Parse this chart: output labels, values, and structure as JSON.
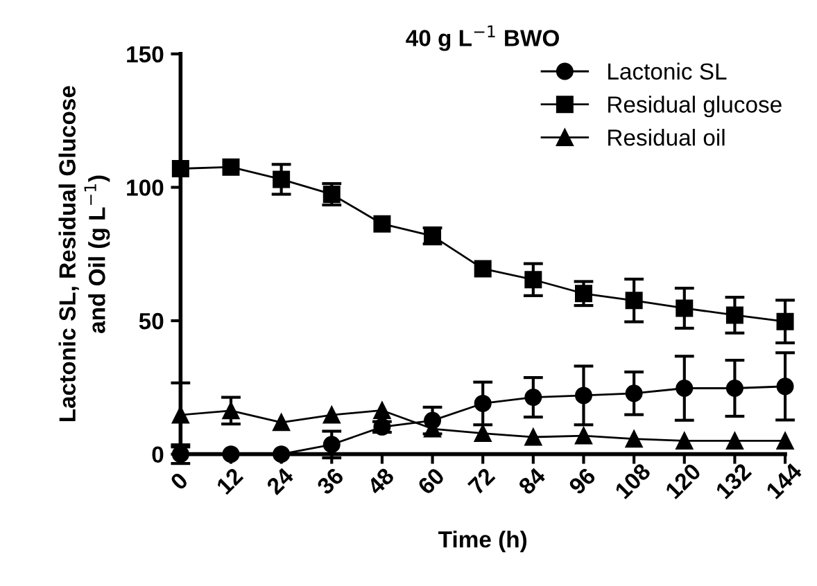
{
  "chart_data": {
    "type": "line",
    "title": "40 g L$^{−1}$ BWO",
    "xlabel": "Time (h)",
    "ylabel": "Lactonic SL, Residual Glucose\nand Oil (g L$^{−1}$)",
    "x": [
      0,
      12,
      24,
      36,
      48,
      60,
      72,
      84,
      96,
      108,
      120,
      132,
      144
    ],
    "series": [
      {
        "name": "Lactonic SL",
        "color": "#000000",
        "marker": "circle",
        "values": [
          0,
          0,
          0,
          3.6,
          10.2,
          12.6,
          19,
          21.3,
          22,
          22.8,
          24.7,
          24.7,
          25.4
        ],
        "errors": [
          3.5,
          null,
          null,
          5,
          2,
          5,
          8,
          7.4,
          11,
          8,
          12,
          10.5,
          12.6
        ]
      },
      {
        "name": "Residual glucose",
        "color": "#000000",
        "marker": "square",
        "values": [
          107,
          107.6,
          103,
          97.4,
          86.3,
          81.8,
          69.5,
          65.4,
          60.2,
          57.6,
          54.7,
          52.1,
          49.7
        ],
        "errors": [
          null,
          null,
          5.6,
          4,
          null,
          3,
          null,
          6,
          4.5,
          8,
          7.5,
          6.7,
          8
        ]
      },
      {
        "name": "Residual oil",
        "color": "#000000",
        "marker": "triangle",
        "values": [
          14.7,
          16.3,
          11.9,
          14.7,
          16.4,
          9.5,
          7.8,
          6.4,
          6.9,
          5.7,
          5,
          5,
          5
        ],
        "errors": [
          12,
          5,
          null,
          null,
          null,
          null,
          null,
          null,
          null,
          null,
          null,
          null,
          null
        ]
      }
    ],
    "xlim": [
      0,
      144
    ],
    "xticks": [
      0,
      12,
      24,
      36,
      48,
      60,
      72,
      84,
      96,
      108,
      120,
      132,
      144
    ],
    "ylim": [
      0,
      150
    ],
    "yticks": [
      0,
      50,
      100,
      150
    ],
    "grid": false,
    "legend": "top right",
    "line_style": "solid"
  }
}
